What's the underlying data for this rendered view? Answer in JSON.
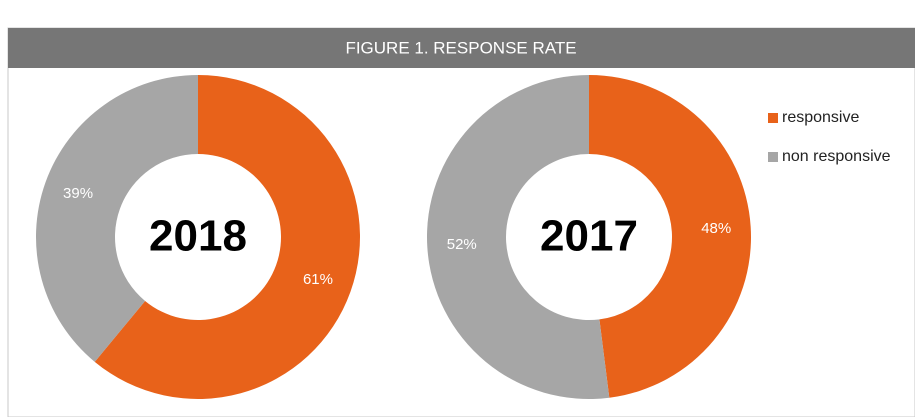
{
  "title": "FIGURE 1. RESPONSE RATE",
  "chart_data": [
    {
      "type": "donut",
      "center_label": "2018",
      "categories": [
        "responsive",
        "non responsive"
      ],
      "values": [
        61,
        39
      ],
      "value_labels": [
        "61%",
        "39%"
      ],
      "colors": [
        "#e8621a",
        "#a6a6a6"
      ]
    },
    {
      "type": "donut",
      "center_label": "2017",
      "categories": [
        "responsive",
        "non responsive"
      ],
      "values": [
        48,
        52
      ],
      "value_labels": [
        "48%",
        "52%"
      ],
      "colors": [
        "#e8621a",
        "#a6a6a6"
      ]
    }
  ],
  "legend": "right"
}
